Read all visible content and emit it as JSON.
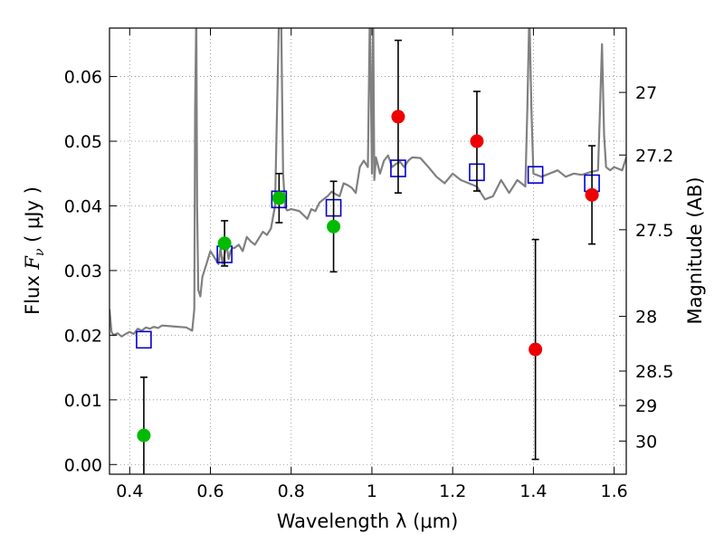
{
  "chart_data": {
    "type": "scatter",
    "title": "",
    "xlabel": "Wavelength  λ (μm)",
    "ylabel": "Flux  F_ν  ( μJy )",
    "ylabel_parts": {
      "prefix": "Flux  ",
      "symbol": "F",
      "subscript": "ν",
      "units": "  ( μJy )"
    },
    "y2label": "Magnitude (AB)",
    "xlim": [
      0.35,
      1.63
    ],
    "ylim": [
      -0.0015,
      0.0675
    ],
    "x_ticks": [
      0.4,
      0.6,
      0.8,
      1.0,
      1.2,
      1.4,
      1.6
    ],
    "x_tick_labels": [
      "0.4",
      "0.6",
      "0.8",
      "1",
      "1.2",
      "1.4",
      "1.6"
    ],
    "y_ticks": [
      0.0,
      0.01,
      0.02,
      0.03,
      0.04,
      0.05,
      0.06
    ],
    "y_tick_labels": [
      "0.00",
      "0.01",
      "0.02",
      "0.03",
      "0.04",
      "0.05",
      "0.06"
    ],
    "y2_ticks": [
      27,
      27.2,
      27.5,
      28,
      28.5,
      29,
      30
    ],
    "y2_tick_labels": [
      "27",
      "27.2",
      "27.5",
      "28",
      "28.5",
      "29",
      "30"
    ],
    "grid": true,
    "colors": {
      "spectrum": "#808080",
      "model": "#0000cc",
      "green": "#00bb00",
      "red": "#ee0000",
      "errorbar": "#000000",
      "grid": "#888888"
    },
    "series": [
      {
        "role": "spectrum",
        "style": "line",
        "x": [
          0.35,
          0.355,
          0.36,
          0.37,
          0.38,
          0.39,
          0.4,
          0.41,
          0.42,
          0.43,
          0.44,
          0.45,
          0.46,
          0.47,
          0.48,
          0.5,
          0.52,
          0.54,
          0.555,
          0.56,
          0.562,
          0.565,
          0.567,
          0.57,
          0.575,
          0.58,
          0.59,
          0.6,
          0.61,
          0.62,
          0.625,
          0.63,
          0.635,
          0.64,
          0.645,
          0.65,
          0.655,
          0.66,
          0.67,
          0.68,
          0.69,
          0.7,
          0.71,
          0.72,
          0.73,
          0.74,
          0.75,
          0.76,
          0.77,
          0.775,
          0.78,
          0.785,
          0.79,
          0.8,
          0.82,
          0.84,
          0.85,
          0.86,
          0.87,
          0.88,
          0.89,
          0.9,
          0.91,
          0.92,
          0.93,
          0.94,
          0.95,
          0.96,
          0.97,
          0.98,
          0.99,
          0.995,
          1.0,
          1.003,
          1.006,
          1.01,
          1.02,
          1.03,
          1.04,
          1.05,
          1.06,
          1.07,
          1.08,
          1.09,
          1.1,
          1.12,
          1.14,
          1.16,
          1.18,
          1.2,
          1.22,
          1.24,
          1.26,
          1.28,
          1.3,
          1.32,
          1.34,
          1.36,
          1.38,
          1.385,
          1.39,
          1.395,
          1.4,
          1.42,
          1.44,
          1.46,
          1.48,
          1.5,
          1.52,
          1.54,
          1.56,
          1.565,
          1.57,
          1.575,
          1.58,
          1.59,
          1.6,
          1.62,
          1.63
        ],
        "y": [
          0.024,
          0.0205,
          0.02,
          0.0203,
          0.0198,
          0.0202,
          0.0205,
          0.0202,
          0.021,
          0.0207,
          0.0212,
          0.021,
          0.0213,
          0.0211,
          0.0215,
          0.0214,
          0.0213,
          0.0212,
          0.0207,
          0.024,
          0.055,
          0.07,
          0.04,
          0.027,
          0.026,
          0.029,
          0.031,
          0.033,
          0.032,
          0.031,
          0.0335,
          0.031,
          0.0325,
          0.034,
          0.0318,
          0.033,
          0.0335,
          0.0335,
          0.034,
          0.033,
          0.0352,
          0.0345,
          0.034,
          0.035,
          0.036,
          0.0355,
          0.0365,
          0.04,
          0.07,
          0.07,
          0.045,
          0.0398,
          0.0393,
          0.0395,
          0.0392,
          0.038,
          0.0395,
          0.0392,
          0.0405,
          0.041,
          0.0415,
          0.0422,
          0.0418,
          0.0415,
          0.0435,
          0.0432,
          0.0428,
          0.042,
          0.046,
          0.047,
          0.046,
          0.07,
          0.045,
          0.07,
          0.044,
          0.0475,
          0.045,
          0.047,
          0.0478,
          0.046,
          0.0465,
          0.0468,
          0.046,
          0.047,
          0.0475,
          0.0474,
          0.046,
          0.0445,
          0.0435,
          0.045,
          0.044,
          0.0435,
          0.043,
          0.041,
          0.0415,
          0.044,
          0.042,
          0.044,
          0.043,
          0.055,
          0.07,
          0.055,
          0.045,
          0.0445,
          0.045,
          0.0455,
          0.0445,
          0.045,
          0.0448,
          0.0452,
          0.0455,
          0.055,
          0.065,
          0.051,
          0.046,
          0.0455,
          0.046,
          0.0455,
          0.0475
        ]
      },
      {
        "role": "model",
        "style": "open-square",
        "x": [
          0.435,
          0.635,
          0.77,
          0.905,
          1.065,
          1.26,
          1.405,
          1.545
        ],
        "y": [
          0.0193,
          0.0325,
          0.041,
          0.0397,
          0.0458,
          0.0452,
          0.0448,
          0.0435
        ]
      },
      {
        "role": "green",
        "style": "filled-circle",
        "x": [
          0.435,
          0.635,
          0.77,
          0.905
        ],
        "y": [
          0.0045,
          0.0342,
          0.0412,
          0.0368
        ],
        "err": [
          0.009,
          0.0035,
          0.0038,
          0.007
        ]
      },
      {
        "role": "red",
        "style": "filled-circle",
        "x": [
          1.065,
          1.26,
          1.405,
          1.545
        ],
        "y": [
          0.0538,
          0.05,
          0.0178,
          0.0417
        ],
        "err": [
          0.0118,
          0.0077,
          0.017,
          0.0076
        ]
      }
    ]
  }
}
